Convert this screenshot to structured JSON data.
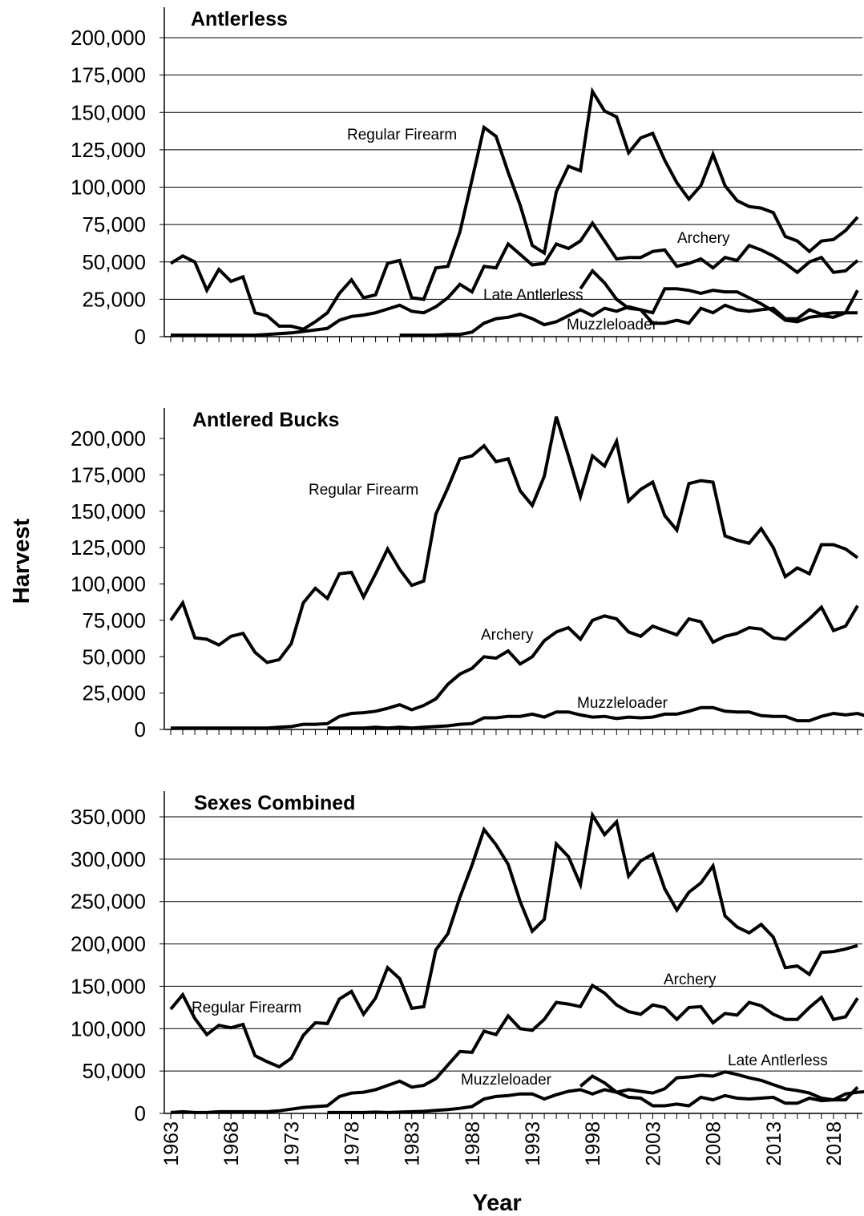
{
  "axis_titles": {
    "y": "Harvest",
    "x": "Year"
  },
  "chart_data": [
    {
      "type": "line",
      "title": "Antlerless",
      "xlabel": "Year",
      "ylabel": "Harvest",
      "xlim": [
        1963,
        2020
      ],
      "ylim": [
        0,
        200000
      ],
      "y_ticks": [
        "0",
        "25,000",
        "50,000",
        "75,000",
        "100,000",
        "125,000",
        "150,000",
        "175,000",
        "200,000"
      ],
      "grid": true,
      "legend": "none (inline labels)",
      "series": [
        {
          "name": "Regular Firearm",
          "start_year": 1963,
          "values": [
            49000,
            54000,
            50000,
            31000,
            45000,
            37000,
            40000,
            16000,
            14000,
            7000,
            7000,
            5000,
            10000,
            16000,
            29000,
            38000,
            26000,
            28000,
            49000,
            51000,
            26000,
            25000,
            46000,
            47000,
            70000,
            105000,
            140000,
            134000,
            110000,
            88000,
            61000,
            56000,
            97000,
            114000,
            111000,
            164000,
            151000,
            147000,
            123000,
            133000,
            136000,
            118000,
            103000,
            92000,
            101000,
            122000,
            101000,
            91000,
            87000,
            86000,
            83000,
            67000,
            64000,
            57000,
            64000,
            65000,
            71000,
            80000
          ]
        },
        {
          "name": "Archery",
          "start_year": 1963,
          "values": [
            1000,
            1000,
            1000,
            1000,
            1000,
            1000,
            1000,
            1000,
            1500,
            2000,
            2500,
            3500,
            4500,
            5500,
            11000,
            13500,
            14500,
            16000,
            18500,
            21000,
            17000,
            16000,
            20000,
            26000,
            35000,
            30000,
            47000,
            46000,
            62000,
            55000,
            48000,
            49000,
            62000,
            59000,
            64000,
            76000,
            64000,
            52000,
            53000,
            53000,
            57000,
            58000,
            47000,
            49000,
            52000,
            46000,
            53000,
            51000,
            61000,
            58000,
            54000,
            49000,
            43000,
            50000,
            53000,
            43000,
            44000,
            51000
          ]
        },
        {
          "name": "Late Antlerless",
          "start_year": 1997,
          "values": [
            32000,
            44000,
            36000,
            25000,
            19000,
            18000,
            9000,
            9000,
            11000,
            9000,
            19000,
            16000,
            21000,
            18000,
            17000,
            18000,
            19000,
            12000,
            12000,
            18000,
            15000,
            16000,
            16000,
            31000
          ]
        },
        {
          "name": "Muzzleloader",
          "start_year": 1982,
          "values": [
            1000,
            1000,
            1000,
            1000,
            1500,
            1500,
            3000,
            9000,
            12000,
            13000,
            15000,
            12000,
            8000,
            10000,
            14000,
            18000,
            14000,
            19000,
            17000,
            20000,
            18000,
            16000,
            32000,
            32000,
            31000,
            29000,
            31000,
            30000,
            30000,
            26000,
            22000,
            17000,
            11000,
            10000,
            13000,
            14000,
            13000,
            16000,
            16000
          ]
        }
      ],
      "annotations": [
        "Regular Firearm",
        "Archery",
        "Late Antlerless",
        "Muzzleloader"
      ]
    },
    {
      "type": "line",
      "title": "Antlered Bucks",
      "xlabel": "Year",
      "ylabel": "Harvest",
      "xlim": [
        1963,
        2020
      ],
      "ylim": [
        0,
        210000
      ],
      "y_ticks": [
        "0",
        "25,000",
        "50,000",
        "75,000",
        "100,000",
        "125,000",
        "150,000",
        "175,000",
        "200,000"
      ],
      "grid": false,
      "legend": "none (inline labels)",
      "series": [
        {
          "name": "Regular Firearm",
          "start_year": 1963,
          "values": [
            75000,
            87000,
            63000,
            62000,
            58000,
            64000,
            66000,
            53000,
            46000,
            48000,
            59000,
            87000,
            97000,
            90000,
            107000,
            108000,
            91000,
            107000,
            124000,
            110000,
            99000,
            102000,
            148000,
            166000,
            186000,
            188000,
            195000,
            184000,
            186000,
            164000,
            154000,
            174000,
            215000,
            188000,
            160000,
            188000,
            181000,
            198000,
            157000,
            165000,
            170000,
            147000,
            137000,
            169000,
            171000,
            170000,
            133000,
            130000,
            128000,
            138000,
            125000,
            105000,
            111000,
            107000,
            127000,
            127000,
            124000,
            118000
          ]
        },
        {
          "name": "Archery",
          "start_year": 1963,
          "values": [
            1000,
            1000,
            1000,
            1000,
            1000,
            1000,
            1000,
            1000,
            1000,
            1500,
            2000,
            3500,
            3500,
            4000,
            9000,
            11000,
            11500,
            12500,
            14500,
            17000,
            13500,
            16500,
            21000,
            31000,
            38000,
            42000,
            50000,
            49000,
            54000,
            45000,
            50000,
            61000,
            67000,
            70000,
            62000,
            75000,
            78000,
            76000,
            67000,
            64000,
            71000,
            68000,
            65000,
            76000,
            74000,
            60000,
            64000,
            66000,
            70000,
            69000,
            63000,
            62000,
            69000,
            76000,
            84000,
            68000,
            71000,
            85000
          ]
        },
        {
          "name": "Muzzleloader",
          "start_year": 1976,
          "values": [
            1000,
            1000,
            1000,
            1000,
            1500,
            1000,
            1500,
            1000,
            1500,
            2000,
            2500,
            3500,
            4000,
            8000,
            8000,
            9000,
            9000,
            10500,
            8500,
            12000,
            12000,
            10000,
            8500,
            9000,
            7500,
            8500,
            8000,
            8500,
            10500,
            10500,
            12500,
            15000,
            15000,
            12500,
            12000,
            12000,
            9500,
            9000,
            9000,
            6000,
            6000,
            9000,
            11000,
            10000,
            11000,
            8500
          ]
        }
      ],
      "annotations": [
        "Regular Firearm",
        "Archery",
        "Muzzleloader"
      ]
    },
    {
      "type": "line",
      "title": "Sexes Combined",
      "xlabel": "Year",
      "ylabel": "Harvest",
      "xlim": [
        1963,
        2020
      ],
      "ylim": [
        0,
        350000
      ],
      "y_ticks": [
        "0",
        "50,000",
        "100,000",
        "150,000",
        "200,000",
        "250,000",
        "300,000",
        "350,000"
      ],
      "x_ticks": [
        "1963",
        "1968",
        "1973",
        "1978",
        "1983",
        "1988",
        "1993",
        "1998",
        "2003",
        "2008",
        "2013",
        "2018"
      ],
      "grid": true,
      "legend": "none (inline labels)",
      "series": [
        {
          "name": "Regular Firearm",
          "start_year": 1963,
          "values": [
            123000,
            140000,
            112000,
            93000,
            104000,
            101000,
            105000,
            68000,
            61000,
            55000,
            65000,
            92000,
            107000,
            106000,
            135000,
            144000,
            117000,
            136000,
            172000,
            159000,
            124000,
            126000,
            193000,
            212000,
            255000,
            293000,
            335000,
            317000,
            294000,
            250000,
            215000,
            229000,
            318000,
            303000,
            270000,
            352000,
            329000,
            344000,
            280000,
            298000,
            306000,
            265000,
            240000,
            261000,
            272000,
            292000,
            233000,
            220000,
            213000,
            223000,
            208000,
            172000,
            174000,
            164000,
            190000,
            191000,
            194000,
            198000
          ]
        },
        {
          "name": "Archery",
          "start_year": 1963,
          "values": [
            1000,
            2000,
            1000,
            1000,
            2000,
            2000,
            2000,
            2000,
            2000,
            3000,
            5000,
            7000,
            8000,
            9000,
            20000,
            24000,
            25000,
            28000,
            33000,
            38000,
            31000,
            33000,
            41000,
            57000,
            73000,
            72000,
            97000,
            93000,
            115000,
            100000,
            98000,
            111000,
            131000,
            129000,
            126000,
            151000,
            142000,
            128000,
            120000,
            117000,
            128000,
            125000,
            111000,
            125000,
            126000,
            107000,
            118000,
            116000,
            131000,
            127000,
            117000,
            111000,
            111000,
            125000,
            137000,
            111000,
            114000,
            136000
          ]
        },
        {
          "name": "Late Antlerless",
          "start_year": 1997,
          "values": [
            32000,
            44000,
            36000,
            25000,
            19000,
            18000,
            9000,
            9000,
            11000,
            9000,
            19000,
            16000,
            21000,
            18000,
            17000,
            18000,
            19000,
            12000,
            12000,
            18000,
            15000,
            16000,
            16000,
            31000
          ]
        },
        {
          "name": "Muzzleloader",
          "start_year": 1976,
          "values": [
            1000,
            1000,
            1000,
            1000,
            1500,
            1000,
            1500,
            2000,
            2500,
            3500,
            4500,
            6000,
            8000,
            17000,
            20000,
            21000,
            23000,
            23000,
            17000,
            22000,
            26000,
            28000,
            23000,
            28000,
            25000,
            28000,
            26000,
            24000,
            29000,
            42000,
            43000,
            45000,
            44000,
            49000,
            46000,
            42000,
            39000,
            34000,
            29000,
            27000,
            24000,
            18000,
            16000,
            23000,
            25000,
            26000,
            27000,
            24000
          ]
        }
      ],
      "annotations": [
        "Regular Firearm",
        "Archery",
        "Late Antlerless",
        "Muzzleloader"
      ]
    }
  ]
}
